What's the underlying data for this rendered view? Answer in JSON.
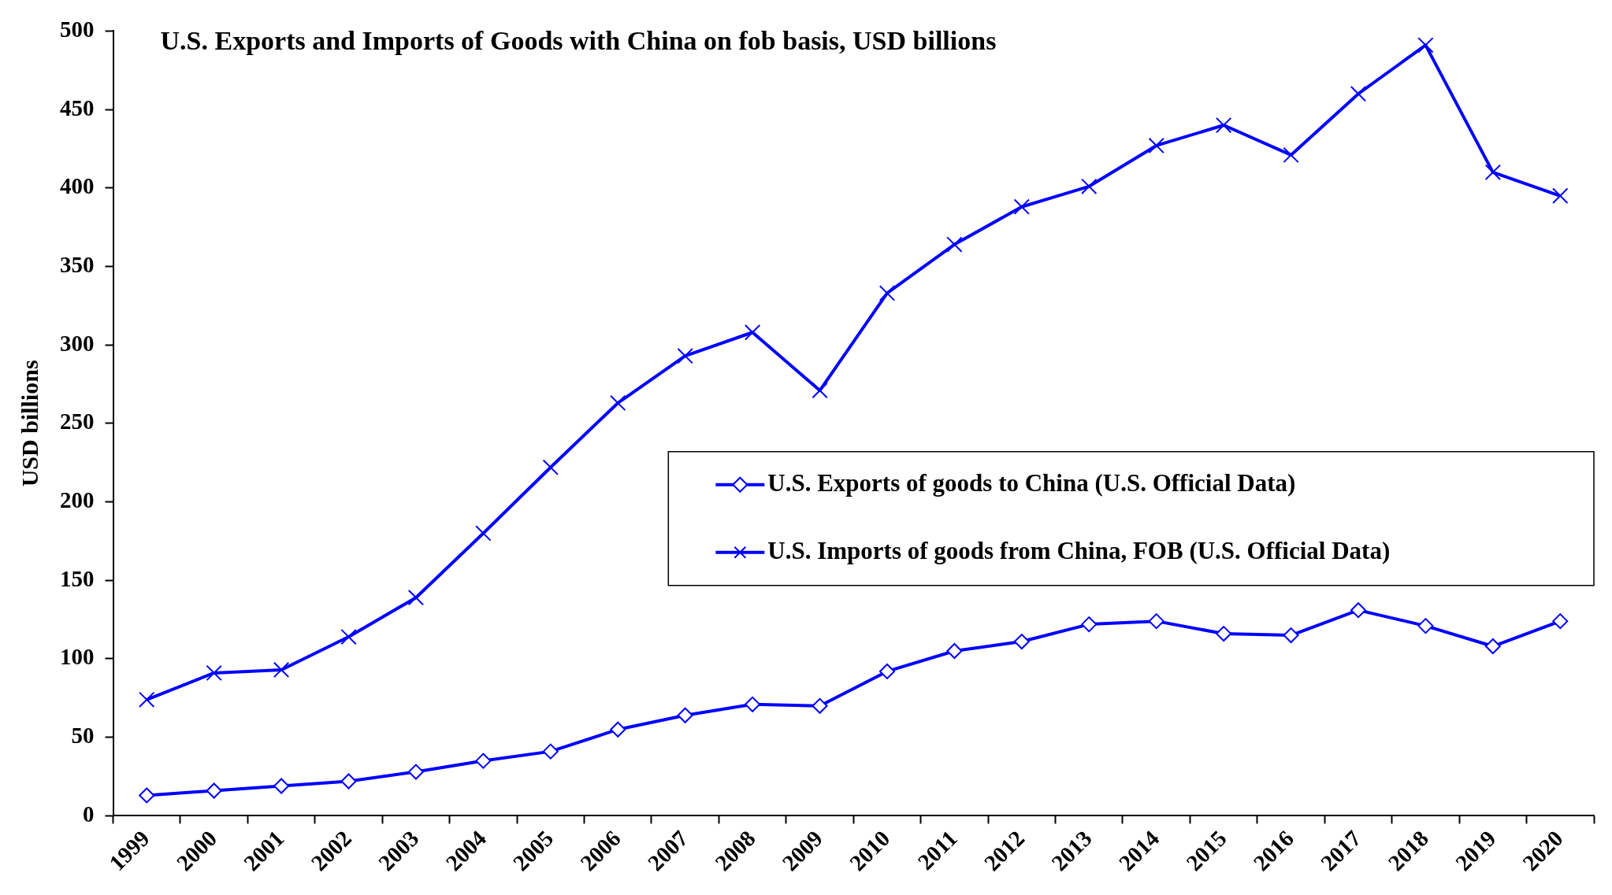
{
  "chart_data": {
    "type": "line",
    "title": "U.S. Exports and Imports of Goods with China on fob basis, USD billions",
    "ylabel": "USD billions",
    "categories": [
      "1999",
      "2000",
      "2001",
      "2002",
      "2003",
      "2004",
      "2005",
      "2006",
      "2007",
      "2008",
      "2009",
      "2010",
      "2011",
      "2012",
      "2013",
      "2014",
      "2015",
      "2016",
      "2017",
      "2018",
      "2019",
      "2020"
    ],
    "series": [
      {
        "name": "U.S. Exports of goods to China (U.S. Official Data)",
        "color": "#0000ff",
        "marker": "diamond",
        "values": [
          13,
          16,
          19,
          22,
          28,
          35,
          41,
          55,
          64,
          71,
          70,
          92,
          105,
          111,
          122,
          124,
          116,
          115,
          131,
          121,
          108,
          124
        ]
      },
      {
        "name": "U.S. Imports of goods from China, FOB (U.S. Official Data)",
        "color": "#0000ff",
        "marker": "cross",
        "values": [
          74,
          91,
          93,
          114,
          139,
          180,
          222,
          263,
          293,
          308,
          271,
          333,
          364,
          388,
          401,
          427,
          440,
          421,
          460,
          491,
          410,
          395
        ]
      }
    ],
    "ylim": [
      0,
      500
    ],
    "yticks": [
      0,
      50,
      100,
      150,
      200,
      250,
      300,
      350,
      400,
      450,
      500
    ],
    "grid": false,
    "legend": "right",
    "line_style": "solid"
  }
}
